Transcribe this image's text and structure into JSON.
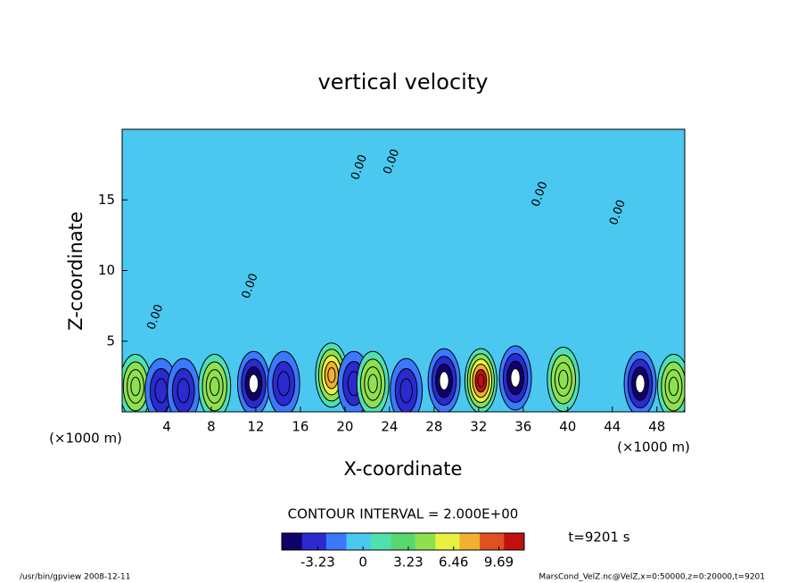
{
  "chart_data": {
    "type": "contour",
    "title": "vertical velocity",
    "x_label": "X-coordinate",
    "y_label": "Z-coordinate",
    "x_unit": "(×1000 m)",
    "y_unit": "(×1000 m)",
    "xlim": [
      0,
      50.5
    ],
    "ylim": [
      0,
      20
    ],
    "xticks": [
      4,
      8,
      12,
      16,
      20,
      24,
      28,
      32,
      36,
      40,
      44,
      48
    ],
    "yticks": [
      5,
      10,
      15
    ],
    "contour_interval": "CONTOUR INTERVAL = 2.000E+00",
    "time_label": "t=9201 s",
    "footer_left": "/usr/bin/gpview  2008-12-11",
    "footer_right": "MarsCond_VelZ.nc@VelZ,x=0:50000,z=0:20000,t=9201",
    "clim": [
      -5.8,
      11.5
    ],
    "cticks": [
      -3.23,
      0,
      3.23,
      6.46,
      9.69
    ],
    "colors": [
      "#10006a",
      "#2a2ad0",
      "#3a78ff",
      "#4ac8f0",
      "#50e0b0",
      "#5ad870",
      "#8ee050",
      "#e8f040",
      "#f0b030",
      "#e05020",
      "#c01010"
    ],
    "contour_labels": [
      {
        "text": "0.00",
        "x": 21.3,
        "z": 17.3
      },
      {
        "text": "0.00",
        "x": 24.2,
        "z": 17.7
      },
      {
        "text": "0.00",
        "x": 11.5,
        "z": 8.9
      },
      {
        "text": "0.00",
        "x": 3.0,
        "z": 6.7
      },
      {
        "text": "0.00",
        "x": 37.5,
        "z": 15.4
      },
      {
        "text": "0.00",
        "x": 44.5,
        "z": 14.1
      }
    ],
    "features": [
      {
        "x": 1.2,
        "z": 1.8,
        "value": 5
      },
      {
        "x": 3.5,
        "z": 1.5,
        "value": -3
      },
      {
        "x": 5.5,
        "z": 1.5,
        "value": -3
      },
      {
        "x": 8.3,
        "z": 1.8,
        "value": 5
      },
      {
        "x": 11.8,
        "z": 2.0,
        "value": -5
      },
      {
        "x": 14.5,
        "z": 2.0,
        "value": -3
      },
      {
        "x": 18.8,
        "z": 2.6,
        "value": 7
      },
      {
        "x": 20.8,
        "z": 2.0,
        "value": -3
      },
      {
        "x": 22.5,
        "z": 2.0,
        "value": 5
      },
      {
        "x": 25.5,
        "z": 1.5,
        "value": -3
      },
      {
        "x": 28.9,
        "z": 2.2,
        "value": -5
      },
      {
        "x": 32.2,
        "z": 2.2,
        "value": 10
      },
      {
        "x": 35.3,
        "z": 2.4,
        "value": -5
      },
      {
        "x": 39.6,
        "z": 2.3,
        "value": 5
      },
      {
        "x": 46.5,
        "z": 2.0,
        "value": -5
      },
      {
        "x": 49.5,
        "z": 1.8,
        "value": 5
      }
    ]
  }
}
